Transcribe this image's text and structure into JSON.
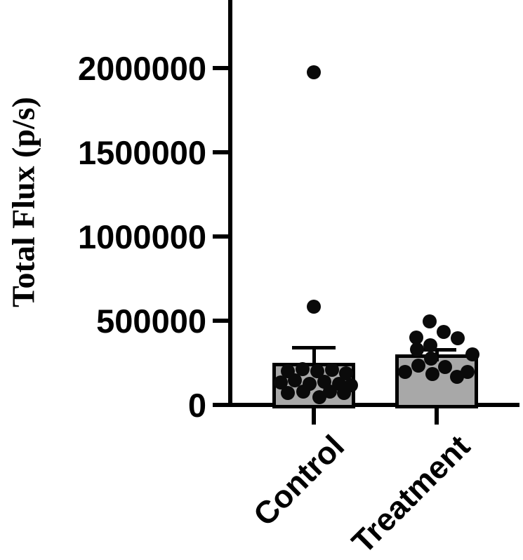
{
  "figure": {
    "background_color": "#ffffff",
    "axis_color": "#000000"
  },
  "chart_data": {
    "type": "bar",
    "title": "",
    "xlabel": "",
    "ylabel": "Total Flux (p/s)",
    "categories": [
      "Control",
      "Treatment"
    ],
    "ylim": [
      0,
      2400000
    ],
    "yticks": [
      0,
      500000,
      1000000,
      1500000,
      2000000
    ],
    "ytick_labels": [
      "0",
      "500000",
      "1000000",
      "1500000",
      "2000000"
    ],
    "grid": false,
    "legend_position": "none",
    "bar_fill_color": "#a8a8a8",
    "bar_border_color": "#000000",
    "point_color": "#0a0a0a",
    "error_bar_style": "mean-plus-sem-cap",
    "series": [
      {
        "name": "Control",
        "mean": 250000,
        "error_top": 340000,
        "points": [
          {
            "v": 1975000,
            "dx": 0
          },
          {
            "v": 583000,
            "dx": 0
          },
          {
            "v": 212000,
            "dx": -16
          },
          {
            "v": 208000,
            "dx": 26
          },
          {
            "v": 200000,
            "dx": -37
          },
          {
            "v": 200000,
            "dx": 5
          },
          {
            "v": 188000,
            "dx": 46
          },
          {
            "v": 146000,
            "dx": -27
          },
          {
            "v": 138000,
            "dx": 15
          },
          {
            "v": 133000,
            "dx": -47
          },
          {
            "v": 125000,
            "dx": -6
          },
          {
            "v": 125000,
            "dx": 36
          },
          {
            "v": 117000,
            "dx": 53
          },
          {
            "v": 79000,
            "dx": -15
          },
          {
            "v": 79000,
            "dx": 23
          },
          {
            "v": 71000,
            "dx": -37
          },
          {
            "v": 71000,
            "dx": 43
          },
          {
            "v": 46000,
            "dx": 8
          }
        ]
      },
      {
        "name": "Treatment",
        "mean": 300000,
        "error_top": 330000,
        "points": [
          {
            "v": 496000,
            "dx": -10
          },
          {
            "v": 433000,
            "dx": 10
          },
          {
            "v": 400000,
            "dx": -29
          },
          {
            "v": 396000,
            "dx": 30
          },
          {
            "v": 354000,
            "dx": -9
          },
          {
            "v": 329000,
            "dx": -28
          },
          {
            "v": 300000,
            "dx": 51
          },
          {
            "v": 275000,
            "dx": -8
          },
          {
            "v": 233000,
            "dx": -26
          },
          {
            "v": 225000,
            "dx": 12
          },
          {
            "v": 196000,
            "dx": -45
          },
          {
            "v": 196000,
            "dx": 44
          },
          {
            "v": 183000,
            "dx": -6
          },
          {
            "v": 167000,
            "dx": 29
          }
        ]
      }
    ]
  }
}
